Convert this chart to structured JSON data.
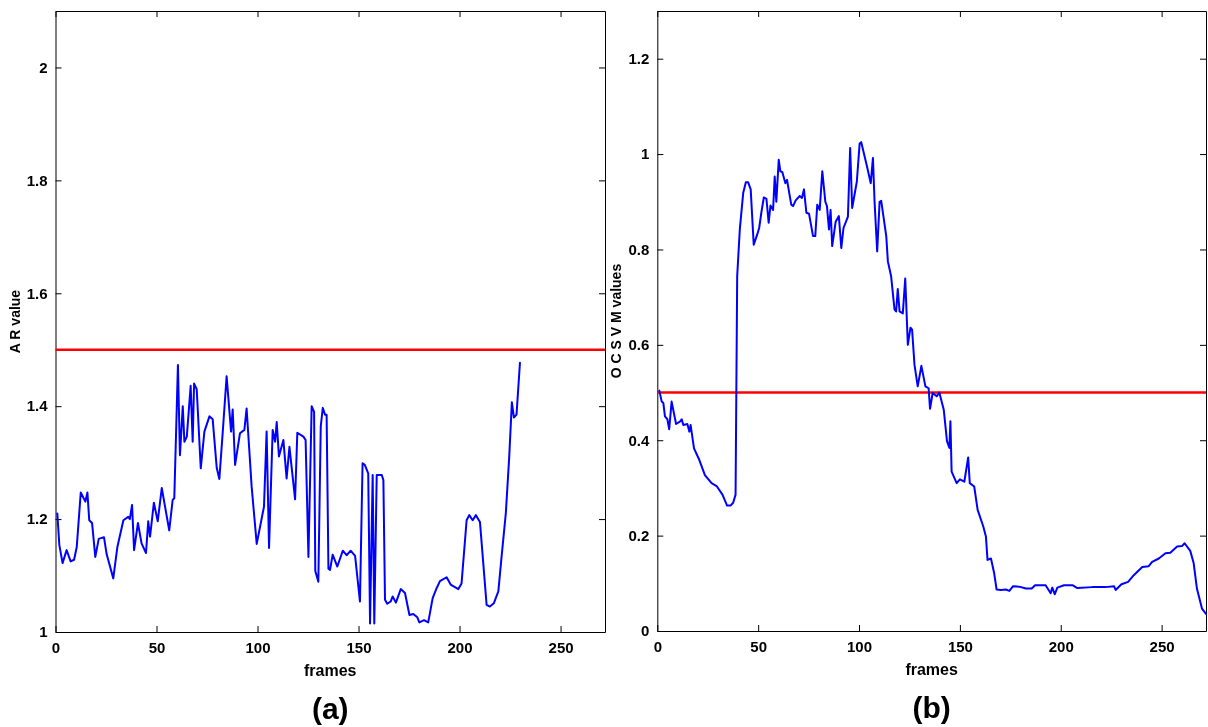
{
  "chart_data": [
    {
      "type": "line",
      "title": "(a)",
      "xlabel": "frames",
      "ylabel": "A R value",
      "xlim": [
        0,
        272
      ],
      "ylim": [
        1,
        2.1
      ],
      "xticks": [
        0,
        50,
        100,
        150,
        200,
        250
      ],
      "yticks": [
        1,
        1.2,
        1.4,
        1.6,
        1.8,
        2
      ],
      "grid": false,
      "line_style": "solid",
      "marker": "none",
      "series": [
        {
          "color": "#0000ff",
          "x": [
            0.9,
            1.9,
            3.5,
            5.5,
            7.5,
            9.2,
            10.5,
            12.5,
            14.8,
            15.8,
            16.7,
            18.1,
            19.7,
            21.4,
            24,
            25.3,
            28.6,
            30.6,
            33.6,
            36,
            36.8,
            37.9,
            38.9,
            40.8,
            42.6,
            44.8,
            45.9,
            46.8,
            48.7,
            50.6,
            52.6,
            56.3,
            58,
            58.8,
            60.6,
            61.6,
            63,
            63.8,
            65,
            66.9,
            67.9,
            68.6,
            69.9,
            71.9,
            73.7,
            76.2,
            77.8,
            79.8,
            81.1,
            82.8,
            84.7,
            86.9,
            87.7,
            88.9,
            91.3,
            93.5,
            94.6,
            97.1,
            99.6,
            102.1,
            103.2,
            104.5,
            105.7,
            107.5,
            108.7,
            109.5,
            110.6,
            112.8,
            114.4,
            115.8,
            118.6,
            119.7,
            122.7,
            123.8,
            125.2,
            126.8,
            128,
            128.6,
            130.1,
            131.3,
            132.3,
            133.4,
            134.2,
            135.1,
            135.9,
            137.2,
            139.5,
            142.2,
            144.1,
            146.1,
            148.3,
            150.7,
            152,
            153.1,
            154.8,
            155.7,
            157,
            157.8,
            159,
            161.5,
            162.3,
            163.1,
            164.2,
            165.9,
            166.9,
            168.5,
            170.9,
            173,
            175.2,
            177.1,
            179.1,
            180.1,
            182.4,
            184.5,
            186.7,
            188.7,
            190.3,
            193.6,
            195.6,
            199.4,
            201,
            203.5,
            204.8,
            206.5,
            208.1,
            210.1,
            213.4,
            215,
            217,
            219.2,
            220.8,
            222.9,
            224.6,
            225.9,
            226.9,
            228.2,
            229.9
          ],
          "values": [
            1.21,
            1.154,
            1.122,
            1.145,
            1.125,
            1.128,
            1.15,
            1.247,
            1.231,
            1.247,
            1.198,
            1.193,
            1.133,
            1.165,
            1.168,
            1.138,
            1.095,
            1.15,
            1.198,
            1.204,
            1.2,
            1.225,
            1.145,
            1.193,
            1.157,
            1.14,
            1.196,
            1.169,
            1.229,
            1.196,
            1.255,
            1.18,
            1.234,
            1.237,
            1.473,
            1.313,
            1.4,
            1.337,
            1.346,
            1.436,
            1.337,
            1.44,
            1.43,
            1.29,
            1.355,
            1.382,
            1.377,
            1.291,
            1.271,
            1.355,
            1.453,
            1.355,
            1.394,
            1.296,
            1.352,
            1.358,
            1.396,
            1.257,
            1.156,
            1.202,
            1.222,
            1.355,
            1.149,
            1.358,
            1.337,
            1.372,
            1.311,
            1.34,
            1.272,
            1.328,
            1.235,
            1.353,
            1.346,
            1.34,
            1.133,
            1.4,
            1.39,
            1.108,
            1.089,
            1.364,
            1.397,
            1.385,
            1.385,
            1.112,
            1.11,
            1.137,
            1.116,
            1.144,
            1.136,
            1.144,
            1.135,
            1.054,
            1.299,
            1.296,
            1.281,
            1.015,
            1.278,
            1.015,
            1.278,
            1.278,
            1.269,
            1.057,
            1.05,
            1.054,
            1.063,
            1.052,
            1.076,
            1.069,
            1.03,
            1.032,
            1.026,
            1.017,
            1.021,
            1.017,
            1.06,
            1.078,
            1.09,
            1.097,
            1.084,
            1.076,
            1.086,
            1.198,
            1.207,
            1.198,
            1.207,
            1.195,
            1.048,
            1.045,
            1.051,
            1.072,
            1.133,
            1.21,
            1.311,
            1.407,
            1.38,
            1.385,
            1.477
          ]
        }
      ],
      "ref_lines": [
        {
          "axis": "y",
          "value": 1.5,
          "color": "#ff0000"
        }
      ]
    },
    {
      "type": "line",
      "title": "(b)",
      "xlabel": "frames",
      "ylabel": "O C S V M values",
      "xlim": [
        0,
        272
      ],
      "ylim": [
        0,
        1.3
      ],
      "xticks": [
        0,
        50,
        100,
        150,
        200,
        250
      ],
      "yticks": [
        0,
        0.2,
        0.4,
        0.6,
        0.8,
        1,
        1.2
      ],
      "grid": false,
      "line_style": "solid",
      "marker": "none",
      "series": [
        {
          "color": "#0000ff",
          "x": [
            1,
            2.2,
            3,
            3.8,
            5,
            5.9,
            7.1,
            9.3,
            11.2,
            12.1,
            12.9,
            14.9,
            15.9,
            16.5,
            18.2,
            20.8,
            23.6,
            26.9,
            29.4,
            32.3,
            34.6,
            36.3,
            37.6,
            38.8,
            39.6,
            40.9,
            42.6,
            43.9,
            45,
            46.3,
            47.8,
            49.5,
            50.5,
            51.6,
            52.8,
            54.1,
            55.2,
            56.1,
            57.4,
            58.2,
            59,
            60.2,
            61,
            62,
            63.5,
            64.3,
            66.4,
            67.3,
            68.6,
            70.6,
            71.7,
            72.7,
            73.9,
            75.2,
            77.2,
            78.3,
            79.3,
            80.5,
            81.8,
            83.3,
            84.1,
            85.1,
            85.9,
            86.7,
            88.4,
            90,
            91.2,
            92.3,
            94.5,
            95.6,
            96.6,
            98.9,
            100.3,
            101.1,
            103.9,
            105.8,
            106.9,
            107.7,
            109,
            110.2,
            111,
            113.5,
            114.3,
            115.9,
            117.6,
            118.4,
            119.2,
            120.1,
            121.7,
            122.9,
            124.2,
            125.5,
            126.3,
            127.5,
            129.1,
            130.9,
            132.9,
            134.5,
            135.2,
            136.5,
            138.5,
            139.8,
            142,
            143.6,
            144.8,
            145.3,
            145.9,
            148.4,
            150,
            152.2,
            154.1,
            154.9,
            157.1,
            158.8,
            161.6,
            162.9,
            163.7,
            165.4,
            167,
            168.2,
            170.3,
            172.8,
            174.5,
            176.4,
            179.4,
            182.7,
            185.6,
            187.3,
            192.5,
            195,
            195.8,
            197,
            198.3,
            201.6,
            205.8,
            208.2,
            215.6,
            222.2,
            226.4,
            227.2,
            230.1,
            233.4,
            236.2,
            240.4,
            243.6,
            245.3,
            248.6,
            251.9,
            254.3,
            257.7,
            260.1,
            261.4,
            264.2,
            265.9,
            267.5,
            270,
            272
          ],
          "values": [
            0.504,
            0.481,
            0.478,
            0.45,
            0.444,
            0.423,
            0.481,
            0.434,
            0.439,
            0.444,
            0.432,
            0.434,
            0.418,
            0.432,
            0.383,
            0.359,
            0.327,
            0.31,
            0.304,
            0.286,
            0.263,
            0.263,
            0.269,
            0.286,
            0.744,
            0.842,
            0.919,
            0.941,
            0.941,
            0.926,
            0.81,
            0.831,
            0.845,
            0.878,
            0.909,
            0.906,
            0.856,
            0.892,
            0.883,
            0.953,
            0.9,
            0.988,
            0.964,
            0.962,
            0.939,
            0.946,
            0.894,
            0.891,
            0.903,
            0.912,
            0.908,
            0.926,
            0.877,
            0.875,
            0.828,
            0.828,
            0.894,
            0.883,
            0.964,
            0.9,
            0.891,
            0.842,
            0.883,
            0.807,
            0.858,
            0.87,
            0.803,
            0.845,
            0.869,
            1.013,
            0.887,
            0.942,
            1.022,
            1.025,
            0.975,
            0.939,
            0.992,
            0.9,
            0.796,
            0.9,
            0.902,
            0.828,
            0.775,
            0.744,
            0.674,
            0.67,
            0.717,
            0.67,
            0.666,
            0.739,
            0.6,
            0.636,
            0.632,
            0.558,
            0.513,
            0.556,
            0.513,
            0.509,
            0.466,
            0.499,
            0.492,
            0.5,
            0.464,
            0.398,
            0.384,
            0.44,
            0.334,
            0.31,
            0.318,
            0.313,
            0.364,
            0.31,
            0.303,
            0.254,
            0.219,
            0.198,
            0.149,
            0.152,
            0.121,
            0.087,
            0.086,
            0.087,
            0.084,
            0.094,
            0.093,
            0.089,
            0.089,
            0.096,
            0.096,
            0.079,
            0.091,
            0.077,
            0.091,
            0.096,
            0.096,
            0.09,
            0.092,
            0.092,
            0.094,
            0.086,
            0.098,
            0.103,
            0.117,
            0.134,
            0.136,
            0.145,
            0.152,
            0.163,
            0.164,
            0.177,
            0.178,
            0.184,
            0.168,
            0.142,
            0.089,
            0.047,
            0.036
          ]
        }
      ],
      "ref_lines": [
        {
          "axis": "y",
          "value": 0.5,
          "color": "#ff0000"
        }
      ]
    }
  ]
}
